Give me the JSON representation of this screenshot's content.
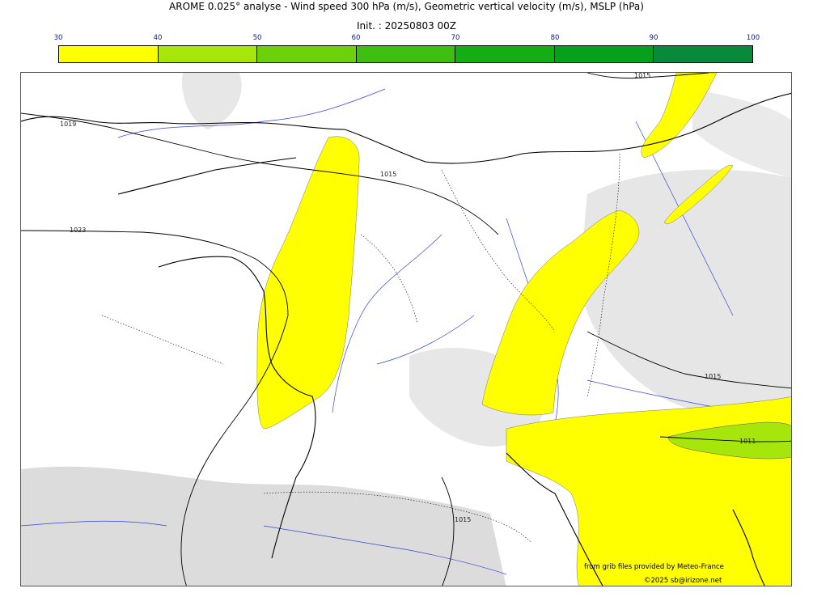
{
  "header": {
    "title": "AROME 0.025° analyse - Wind speed 300 hPa (m/s), Geometric vertical velocity (m/s), MSLP (hPa)",
    "init": "Init. : 20250803 00Z"
  },
  "colorbar": {
    "ticks": [
      "30",
      "40",
      "50",
      "60",
      "70",
      "80",
      "90",
      "100"
    ],
    "colors": [
      "#ffff00",
      "#a6e60a",
      "#6cd10a",
      "#3dbf10",
      "#14ad14",
      "#05a01c",
      "#098a3a",
      "#0c7a4e"
    ]
  },
  "map": {
    "isobars": {
      "l1015_top": "1015",
      "l1019": "1019",
      "l1015_mid": "1015",
      "l1023": "1023",
      "l1015_east": "1015",
      "l1011": "1011",
      "l1015_south": "1015"
    },
    "colors": {
      "jet_core": "#ffff00",
      "jet_strong": "#a6e60a",
      "terrain": "#d9d9d9",
      "rivers": "#3344dd",
      "coast": "#000000"
    }
  },
  "credits": {
    "source": "from grib files provided by Meteo-France",
    "copyright": "©2025 sb@irizone.net"
  }
}
